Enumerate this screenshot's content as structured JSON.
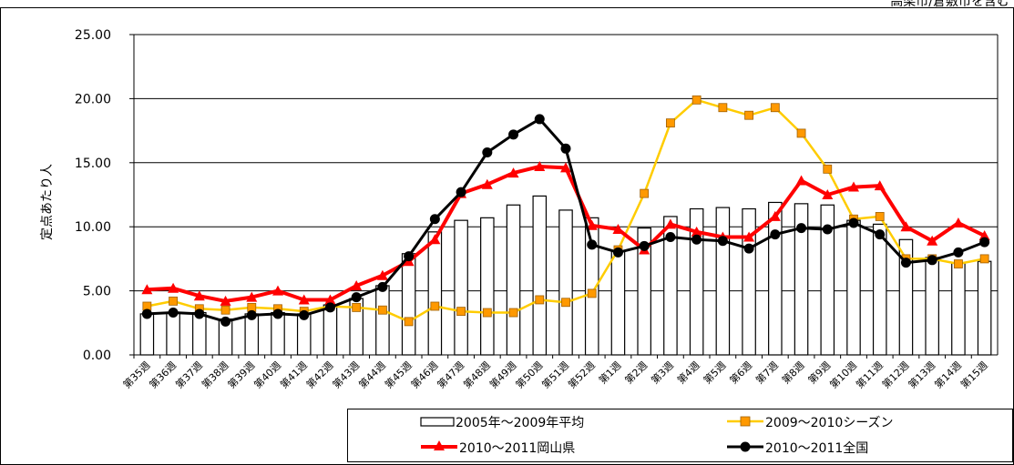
{
  "chart_data": {
    "type": "bar+line",
    "note": "高梁市/倉敷市を含む",
    "ylabel": "定点あたり人",
    "ylim": [
      0,
      25
    ],
    "yticks": [
      "0.00",
      "5.00",
      "10.00",
      "15.00",
      "20.00",
      "25.00"
    ],
    "ytick_values": [
      0,
      5,
      10,
      15,
      20,
      25
    ],
    "grid": "horizontal",
    "legend_position": "bottom-right",
    "categories": [
      "第35週",
      "第36週",
      "第37週",
      "第38週",
      "第39週",
      "第40週",
      "第41週",
      "第42週",
      "第43週",
      "第44週",
      "第45週",
      "第46週",
      "第47週",
      "第48週",
      "第49週",
      "第50週",
      "第51週",
      "第52週",
      "第1週",
      "第2週",
      "第3週",
      "第4週",
      "第5週",
      "第6週",
      "第7週",
      "第8週",
      "第9週",
      "第10週",
      "第11週",
      "第12週",
      "第13週",
      "第14週",
      "第15週"
    ],
    "series": [
      {
        "name": "2005年～2009年平均",
        "kind": "bar",
        "color": "#ffffff",
        "stroke": "#000000",
        "values": [
          3.2,
          3.3,
          3.3,
          2.8,
          3.2,
          3.3,
          3.2,
          3.9,
          4.4,
          5.4,
          7.9,
          9.6,
          10.5,
          10.7,
          11.7,
          12.4,
          11.3,
          10.7,
          8.1,
          9.9,
          10.8,
          11.4,
          11.5,
          11.4,
          11.9,
          11.8,
          11.7,
          10.5,
          10.2,
          9.0,
          7.6,
          7.2,
          7.3
        ]
      },
      {
        "name": "2009～2010シーズン",
        "kind": "line",
        "color": "#ffcc00",
        "marker": "square",
        "marker_fill": "#ff9900",
        "values": [
          3.8,
          4.2,
          3.6,
          3.5,
          3.7,
          3.6,
          3.4,
          3.8,
          3.7,
          3.5,
          2.6,
          3.8,
          3.4,
          3.3,
          3.3,
          4.3,
          4.1,
          4.8,
          8.2,
          12.6,
          18.1,
          19.9,
          19.3,
          18.7,
          19.3,
          17.3,
          14.5,
          10.6,
          10.8,
          7.5,
          7.5,
          7.1,
          7.5
        ]
      },
      {
        "name": "2010～2011岡山県",
        "kind": "line",
        "color": "#ff0000",
        "marker": "triangle",
        "values": [
          5.1,
          5.2,
          4.6,
          4.2,
          4.5,
          5.0,
          4.3,
          4.3,
          5.4,
          6.2,
          7.3,
          9.0,
          12.6,
          13.3,
          14.2,
          14.7,
          14.6,
          10.1,
          9.8,
          8.2,
          10.2,
          9.6,
          9.2,
          9.2,
          10.8,
          13.6,
          12.5,
          13.1,
          13.2,
          10.0,
          8.9,
          10.3,
          9.3
        ]
      },
      {
        "name": "2010～2011全国",
        "kind": "line",
        "color": "#000000",
        "marker": "circle",
        "values": [
          3.2,
          3.3,
          3.2,
          2.6,
          3.1,
          3.2,
          3.1,
          3.7,
          4.5,
          5.3,
          7.7,
          10.6,
          12.7,
          15.8,
          17.2,
          18.4,
          16.1,
          8.6,
          8.0,
          8.5,
          9.2,
          9.0,
          8.9,
          8.3,
          9.4,
          9.9,
          9.8,
          10.3,
          9.4,
          7.2,
          7.4,
          8.0,
          8.8
        ]
      }
    ]
  }
}
